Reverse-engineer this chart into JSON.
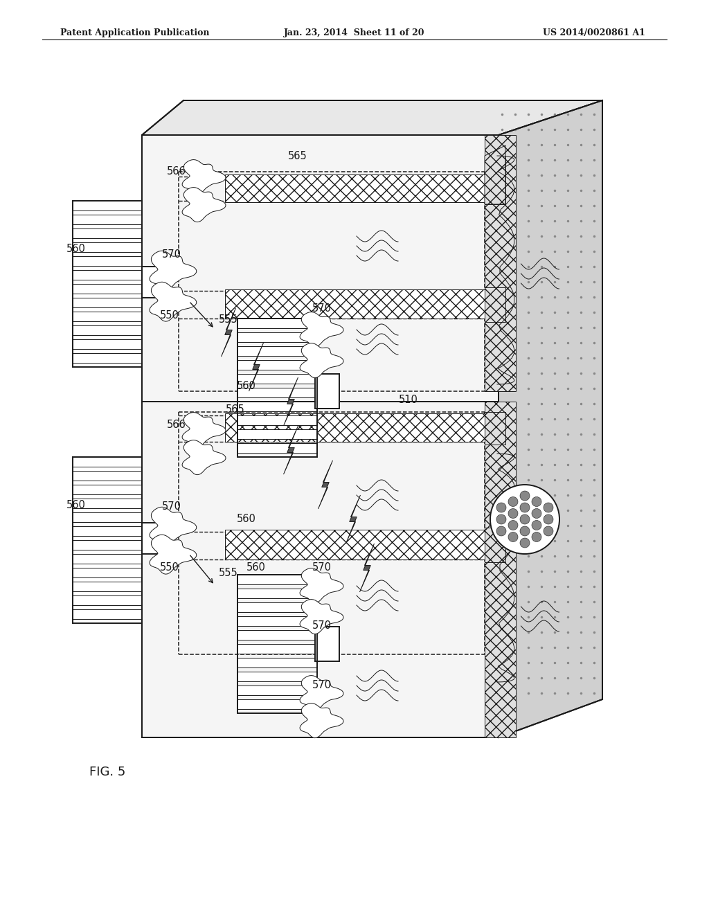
{
  "header_left": "Patent Application Publication",
  "header_center": "Jan. 23, 2014  Sheet 11 of 20",
  "header_right": "US 2014/0020861 A1",
  "fig_label": "FIG. 5",
  "bg_color": "#ffffff",
  "lc": "#1a1a1a",
  "gray_right_face": "#d0d0d0",
  "gray_top_face": "#e8e8e8",
  "gray_side_face": "#c0c0c0"
}
